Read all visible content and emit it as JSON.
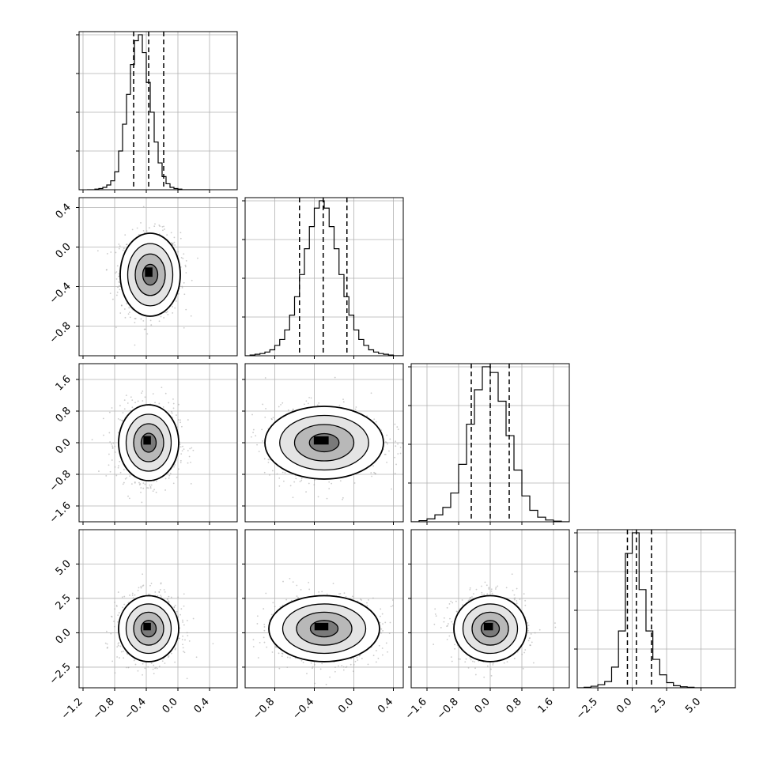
{
  "chart_data": {
    "type": "corner",
    "params": [
      {
        "range": [
          -1.25,
          0.75
        ],
        "ticks": [
          -1.2,
          -0.8,
          -0.4,
          0.0,
          0.4
        ],
        "tick_labels": [
          "−1.2",
          "−0.8",
          "−0.4",
          "0.0",
          "0.4"
        ],
        "label": ""
      },
      {
        "range": [
          -1.1,
          0.5
        ],
        "ticks": [
          -0.8,
          -0.4,
          0.0,
          0.4
        ],
        "tick_labels": [
          "−0.8",
          "−0.4",
          "0.0",
          "0.4"
        ],
        "label": ""
      },
      {
        "range": [
          -2.0,
          2.0
        ],
        "ticks": [
          -1.6,
          -0.8,
          0.0,
          0.8,
          1.6
        ],
        "tick_labels": [
          "−1.6",
          "−0.8",
          "0.0",
          "0.8",
          "1.6"
        ],
        "label": ""
      },
      {
        "range": [
          -4.0,
          7.5
        ],
        "ticks": [
          -2.5,
          0.0,
          2.5,
          5.0
        ],
        "tick_labels": [
          "−2.5",
          "0.0",
          "2.5",
          "5.0"
        ],
        "label": ""
      }
    ],
    "histograms": [
      {
        "bins": [
          -1.15,
          -1.1,
          -1.05,
          -1.0,
          -0.95,
          -0.9,
          -0.85,
          -0.8,
          -0.75,
          -0.7,
          -0.65,
          -0.6,
          -0.55,
          -0.5,
          -0.45,
          -0.4,
          -0.35,
          -0.3,
          -0.25,
          -0.2,
          -0.15,
          -0.1,
          -0.05,
          0.0,
          0.05,
          0.1,
          0.15,
          0.2,
          0.25,
          0.3,
          0.35,
          0.4
        ],
        "counts": [
          0,
          0,
          1,
          2,
          4,
          8,
          15,
          30,
          65,
          110,
          160,
          210,
          250,
          260,
          230,
          180,
          130,
          80,
          45,
          22,
          10,
          4,
          2,
          1,
          0,
          0,
          0,
          0,
          0,
          0,
          0
        ],
        "quantiles": [
          -0.56,
          -0.37,
          -0.18
        ]
      },
      {
        "bins": [
          -1.1,
          -1.05,
          -1.0,
          -0.95,
          -0.9,
          -0.85,
          -0.8,
          -0.75,
          -0.7,
          -0.65,
          -0.6,
          -0.55,
          -0.5,
          -0.45,
          -0.4,
          -0.35,
          -0.3,
          -0.25,
          -0.2,
          -0.15,
          -0.1,
          -0.05,
          0.0,
          0.05,
          0.1,
          0.15,
          0.2,
          0.25,
          0.3,
          0.35,
          0.4,
          0.45,
          0.5
        ],
        "counts": [
          0,
          1,
          2,
          3,
          5,
          8,
          14,
          22,
          35,
          55,
          80,
          110,
          145,
          175,
          200,
          210,
          200,
          175,
          145,
          110,
          80,
          55,
          35,
          22,
          14,
          8,
          5,
          3,
          2,
          1,
          0,
          0
        ],
        "quantiles": [
          -0.55,
          -0.31,
          -0.07
        ]
      },
      {
        "bins": [
          -2.0,
          -1.8,
          -1.6,
          -1.4,
          -1.2,
          -1.0,
          -0.8,
          -0.6,
          -0.4,
          -0.2,
          0.0,
          0.2,
          0.4,
          0.6,
          0.8,
          1.0,
          1.2,
          1.4,
          1.6,
          1.8,
          2.0
        ],
        "counts": [
          0,
          2,
          5,
          12,
          25,
          50,
          100,
          170,
          230,
          270,
          260,
          210,
          150,
          90,
          45,
          20,
          8,
          3,
          1,
          0
        ],
        "quantiles": [
          -0.48,
          0.0,
          0.48
        ]
      },
      {
        "bins": [
          -4.0,
          -3.5,
          -3.0,
          -2.5,
          -2.0,
          -1.5,
          -1.0,
          -0.5,
          0.0,
          0.5,
          1.0,
          1.5,
          2.0,
          2.5,
          3.0,
          3.5,
          4.0,
          4.5,
          5.0,
          5.5,
          6.0,
          6.5,
          7.0,
          7.5
        ],
        "counts": [
          0,
          1,
          3,
          6,
          12,
          40,
          110,
          260,
          300,
          190,
          110,
          55,
          25,
          10,
          4,
          2,
          1,
          0,
          0,
          0,
          0,
          0,
          0
        ],
        "quantiles": [
          -0.35,
          0.3,
          1.4
        ]
      }
    ],
    "contours": [
      {
        "pair": [
          0,
          1
        ],
        "center": [
          -0.35,
          -0.28
        ],
        "sigma": [
          0.19,
          0.21
        ],
        "levels": [
          0.5,
          1.0,
          1.5,
          2.0
        ]
      },
      {
        "pair": [
          0,
          2
        ],
        "center": [
          -0.37,
          0.0
        ],
        "sigma": [
          0.19,
          0.48
        ],
        "levels": [
          0.5,
          1.0,
          1.5,
          2.0
        ]
      },
      {
        "pair": [
          1,
          2
        ],
        "center": [
          -0.3,
          0.0
        ],
        "sigma": [
          0.3,
          0.46
        ],
        "levels": [
          0.5,
          1.0,
          1.5,
          2.0
        ]
      },
      {
        "pair": [
          0,
          3
        ],
        "center": [
          -0.37,
          0.3
        ],
        "sigma": [
          0.19,
          1.2
        ],
        "levels": [
          0.5,
          1.0,
          1.5,
          2.0
        ]
      },
      {
        "pair": [
          1,
          3
        ],
        "center": [
          -0.3,
          0.3
        ],
        "sigma": [
          0.28,
          1.2
        ],
        "levels": [
          0.5,
          1.0,
          1.5,
          2.0
        ]
      },
      {
        "pair": [
          2,
          3
        ],
        "center": [
          0.0,
          0.3
        ],
        "sigma": [
          0.46,
          1.2
        ],
        "levels": [
          0.5,
          1.0,
          1.5,
          2.0
        ]
      }
    ],
    "grid": true,
    "colors": {
      "line": "#000000",
      "grid": "#b0b0b0",
      "points": "#a0a0a0",
      "fill_dark": "#000000"
    }
  }
}
